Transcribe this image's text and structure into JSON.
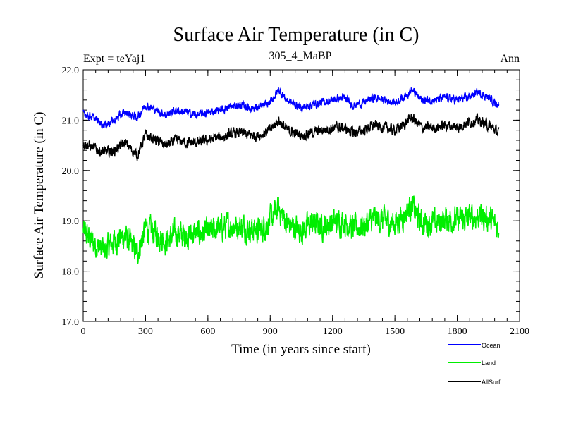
{
  "chart_data": {
    "type": "line",
    "title": "Surface Air Temperature (in C)",
    "subtitle_left": "Expt = teYaj1",
    "subtitle_center": "305_4_MaBP",
    "subtitle_right": "Ann",
    "xlabel": "Time (in years since start)",
    "ylabel": "Surface Air Temperature (in C)",
    "xlim": [
      0,
      2100
    ],
    "ylim": [
      17.0,
      22.0
    ],
    "x_ticks": [
      0,
      300,
      600,
      900,
      1200,
      1500,
      1800,
      2100
    ],
    "x_tick_labels": [
      "0",
      "300",
      "600",
      "900",
      "1200",
      "1500",
      "1800",
      "2100"
    ],
    "y_ticks": [
      17.0,
      18.0,
      19.0,
      20.0,
      21.0,
      22.0
    ],
    "y_tick_labels": [
      "17.0",
      "18.0",
      "19.0",
      "20.0",
      "21.0",
      "22.0"
    ],
    "legend_position": "below-right",
    "series": [
      {
        "name": "Ocean",
        "color": "#0000ff",
        "anchors_x": [
          0,
          50,
          100,
          150,
          200,
          260,
          300,
          350,
          400,
          450,
          500,
          550,
          600,
          650,
          700,
          750,
          800,
          850,
          900,
          940,
          980,
          1050,
          1100,
          1150,
          1200,
          1250,
          1300,
          1350,
          1400,
          1450,
          1500,
          1540,
          1580,
          1630,
          1700,
          1750,
          1800,
          1850,
          1900,
          1950,
          2000
        ],
        "anchors_y": [
          21.15,
          21.05,
          20.9,
          21.0,
          21.15,
          21.05,
          21.3,
          21.2,
          21.1,
          21.2,
          21.15,
          21.1,
          21.15,
          21.2,
          21.25,
          21.3,
          21.25,
          21.25,
          21.35,
          21.6,
          21.4,
          21.25,
          21.3,
          21.35,
          21.4,
          21.45,
          21.3,
          21.35,
          21.45,
          21.4,
          21.35,
          21.45,
          21.6,
          21.4,
          21.4,
          21.45,
          21.4,
          21.45,
          21.55,
          21.45,
          21.3
        ],
        "noise": 0.06
      },
      {
        "name": "Land",
        "color": "#00ee00",
        "anchors_x": [
          0,
          50,
          100,
          150,
          200,
          260,
          300,
          350,
          400,
          450,
          500,
          550,
          600,
          650,
          700,
          750,
          800,
          850,
          900,
          940,
          980,
          1050,
          1100,
          1150,
          1200,
          1250,
          1300,
          1350,
          1400,
          1450,
          1500,
          1540,
          1580,
          1630,
          1700,
          1750,
          1800,
          1850,
          1900,
          1950,
          2000
        ],
        "anchors_y": [
          18.8,
          18.55,
          18.4,
          18.6,
          18.7,
          18.35,
          18.85,
          18.75,
          18.6,
          18.75,
          18.7,
          18.75,
          18.75,
          18.85,
          18.9,
          18.9,
          18.85,
          18.8,
          19.0,
          19.25,
          18.95,
          18.8,
          18.95,
          18.9,
          18.95,
          19.0,
          18.85,
          18.9,
          19.05,
          19.0,
          18.95,
          19.1,
          19.3,
          18.95,
          18.95,
          19.05,
          19.0,
          19.05,
          19.1,
          19.05,
          18.85
        ],
        "noise": 0.2
      },
      {
        "name": "AllSurf",
        "color": "#000000",
        "anchors_x": [
          0,
          50,
          100,
          150,
          200,
          260,
          300,
          350,
          400,
          450,
          500,
          550,
          600,
          650,
          700,
          750,
          800,
          850,
          900,
          940,
          980,
          1050,
          1100,
          1150,
          1200,
          1250,
          1300,
          1350,
          1400,
          1450,
          1500,
          1540,
          1580,
          1630,
          1700,
          1750,
          1800,
          1850,
          1900,
          1950,
          2000
        ],
        "anchors_y": [
          20.55,
          20.45,
          20.35,
          20.4,
          20.55,
          20.3,
          20.7,
          20.6,
          20.5,
          20.6,
          20.55,
          20.55,
          20.6,
          20.65,
          20.7,
          20.75,
          20.7,
          20.7,
          20.8,
          21.0,
          20.8,
          20.7,
          20.75,
          20.8,
          20.85,
          20.85,
          20.75,
          20.8,
          20.9,
          20.85,
          20.8,
          20.9,
          21.05,
          20.85,
          20.85,
          20.9,
          20.85,
          20.95,
          21.0,
          20.9,
          20.75
        ],
        "noise": 0.08
      }
    ]
  }
}
